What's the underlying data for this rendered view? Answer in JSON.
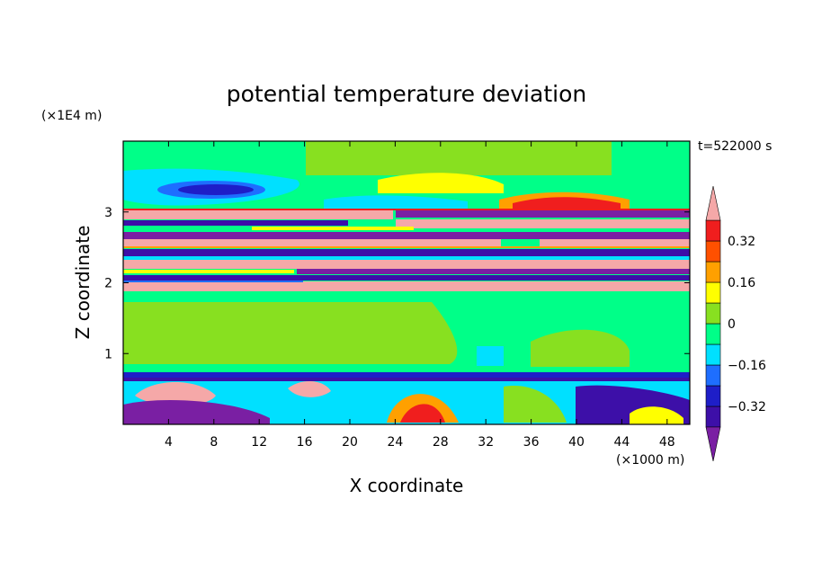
{
  "chart_data": {
    "type": "heatmap",
    "title": "potential temperature deviation",
    "xlabel": "X coordinate",
    "ylabel": "Z coordinate",
    "x_unit": "(×1000 m)",
    "y_unit": "(×1E4 m)",
    "time_label": "t=522000 s",
    "xlim": [
      0,
      50
    ],
    "ylim": [
      0,
      4
    ],
    "x_ticks": [
      4,
      8,
      12,
      16,
      20,
      24,
      28,
      32,
      36,
      40,
      44,
      48
    ],
    "y_ticks": [
      1,
      2,
      3
    ],
    "colorbar": {
      "levels": [
        -0.4,
        -0.32,
        -0.24,
        -0.16,
        -0.08,
        0,
        0.08,
        0.16,
        0.24,
        0.32,
        0.4
      ],
      "labels": [
        {
          "value": 0.32,
          "text": "0.32"
        },
        {
          "value": 0.16,
          "text": "0.16"
        },
        {
          "value": 0,
          "text": "0"
        },
        {
          "value": -0.16,
          "text": "−0.16"
        },
        {
          "value": -0.32,
          "text": "−0.32"
        }
      ],
      "colors": {
        "under": "#7a1fa3",
        "bins": [
          "#3d0fa8",
          "#1e1ec8",
          "#1e6eff",
          "#00e0ff",
          "#00ff88",
          "#88e020",
          "#ffff00",
          "#ffa000",
          "#ff5000",
          "#f01e1e"
        ],
        "over": "#f5a8a8"
      }
    },
    "bands": [
      {
        "z0": 3.2,
        "z1": 4.0,
        "value": 0.0
      },
      {
        "z0": 1.9,
        "z1": 3.2,
        "value": 0.4
      },
      {
        "z0": 0.75,
        "z1": 1.9,
        "value": 0.02
      },
      {
        "z0": 0.0,
        "z1": 0.75,
        "value": -0.1
      }
    ]
  }
}
